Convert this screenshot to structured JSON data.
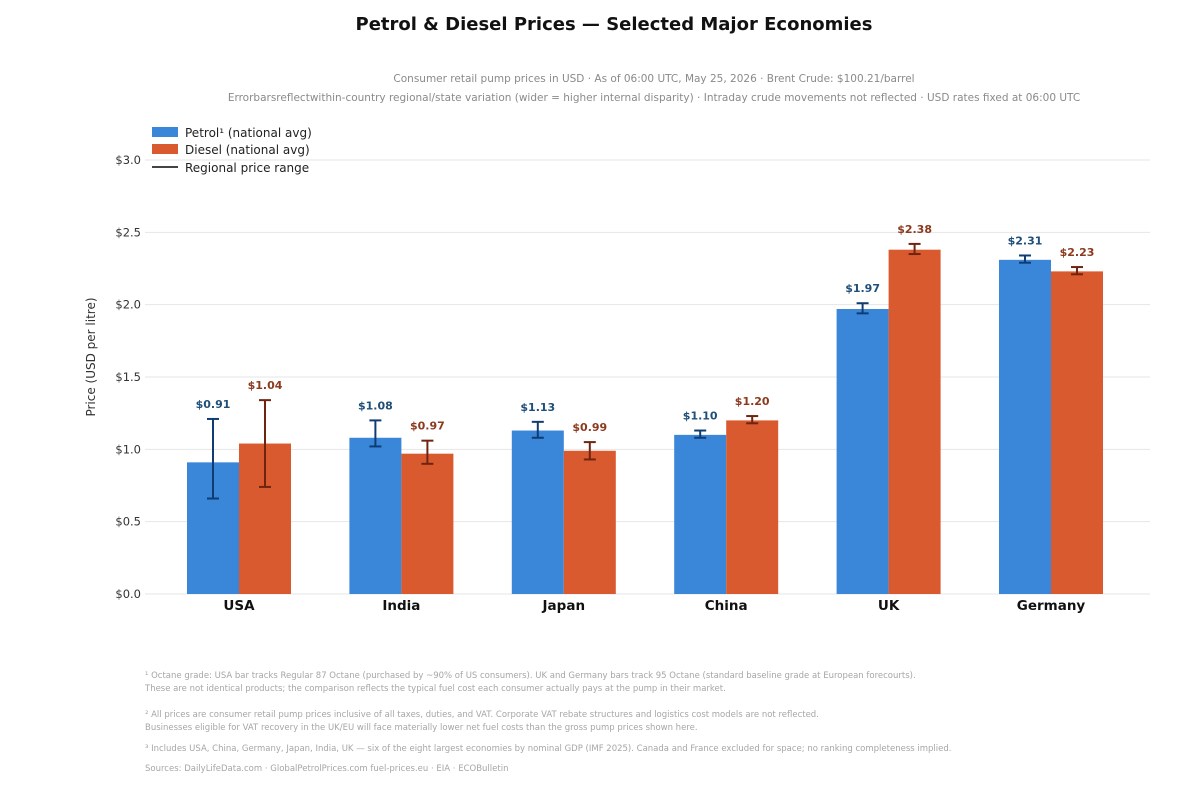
{
  "chart_data": {
    "type": "bar",
    "title": "Petrol & Diesel Prices — Selected Major Economies",
    "subtitle_lines": [
      "Consumer retail pump prices in USD · As of 06:00 UTC, May 25, 2026 · Brent Crude: $100.21/barrel",
      "Errorbarsreflectwithin-country regional/state variation (wider = higher internal disparity) · Intraday crude movements not reflected · USD rates fixed at 06:00 UTC"
    ],
    "ylabel": "Price (USD per litre)",
    "ylim": [
      0,
      3.0
    ],
    "yticks": [
      0,
      0.5,
      1.0,
      1.5,
      2.0,
      2.5,
      3.0
    ],
    "ytick_labels": [
      "$0.0",
      "$0.5",
      "$1.0",
      "$1.5",
      "$2.0",
      "$2.5",
      "$3.0"
    ],
    "grid": "horizontal",
    "legend_position": "top-left",
    "categories": [
      "USA",
      "India",
      "Japan",
      "China",
      "UK",
      "Germany"
    ],
    "series": [
      {
        "name": "Petrol¹ (national avg)",
        "color": "#3a86d8",
        "label_color": "#1f4e79",
        "err_color": "#0f3d73",
        "values": [
          0.91,
          1.08,
          1.13,
          1.1,
          1.97,
          2.31
        ],
        "labels": [
          "$0.91",
          "$1.08",
          "$1.13",
          "$1.10",
          "$1.97",
          "$2.31"
        ],
        "range_low": [
          0.66,
          1.02,
          1.08,
          1.08,
          1.94,
          2.29
        ],
        "range_high": [
          1.21,
          1.2,
          1.19,
          1.13,
          2.01,
          2.34
        ]
      },
      {
        "name": "Diesel (national avg)",
        "color": "#d95a2e",
        "label_color": "#8b3a1e",
        "err_color": "#6e2410",
        "values": [
          1.04,
          0.97,
          0.99,
          1.2,
          2.38,
          2.23
        ],
        "labels": [
          "$1.04",
          "$0.97",
          "$0.99",
          "$1.20",
          "$2.38",
          "$2.23"
        ],
        "range_low": [
          0.74,
          0.9,
          0.93,
          1.18,
          2.35,
          2.21
        ],
        "range_high": [
          1.34,
          1.06,
          1.05,
          1.23,
          2.42,
          2.26
        ]
      }
    ],
    "range_legend_label": "Regional price range"
  },
  "footnotes": [
    "¹ Octane grade: USA bar tracks Regular 87 Octane (purchased by ~90% of US consumers). UK and Germany bars track 95 Octane (standard baseline grade at European forecourts).",
    "These are not identical products; the comparison reflects the typical fuel cost each consumer actually pays at the pump in their market.",
    "² All prices are consumer retail pump prices inclusive of all taxes, duties, and VAT. Corporate VAT rebate structures and logistics cost models are not reflected.",
    " Businesses eligible for VAT recovery in the UK/EU will face materially lower net fuel costs than the gross pump prices shown here.",
    "³ Includes USA, China, Germany, Japan, India, UK — six of the eight largest economies by nominal GDP (IMF 2025). Canada and France excluded for space; no ranking completeness implied.",
    "Sources: DailyLifeData.com · GlobalPetrolPrices.com         fuel-prices.eu · EIA · ECOBulletin"
  ]
}
